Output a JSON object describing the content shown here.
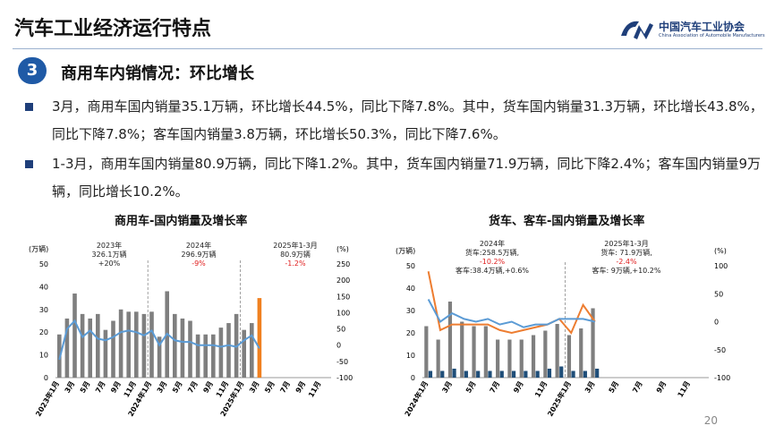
{
  "header": {
    "title": "汽车工业经济运行特点"
  },
  "logo": {
    "cn": "中国汽车工业协会",
    "en": "China Association of Automobile Manufacturers"
  },
  "section": {
    "number": "3",
    "title": "商用车内销情况：环比增长"
  },
  "paragraphs": [
    "3月，商用车国内销量35.1万辆，环比增长44.5%，同比下降7.8%。其中，货车国内销量31.3万辆，环比增长43.8%，同比下降7.8%；客车国内销量3.8万辆，环比增长50.3%，同比下降7.6%。",
    "1-3月，商用车国内销量80.9万辆，同比下降1.2%。其中，货车国内销量71.9万辆，同比下降2.4%；客车国内销量9万辆，同比增长10.2%。"
  ],
  "page_number": "20",
  "colors": {
    "bar_gray": "#7f7f7f",
    "bar_orange": "#f08020",
    "line_blue": "#5b9bd5",
    "line_orange": "#ed7d31",
    "bar_dark_blue": "#1f4e79",
    "red": "#e02020",
    "title_blue": "#1f3f7a"
  },
  "chart_data": [
    {
      "type": "bar",
      "title": "商用车-国内销量及增长率",
      "y_left_unit": "(万辆)",
      "y_right_unit": "(%)",
      "ylim": [
        0,
        50
      ],
      "y2lim": [
        -100,
        250
      ],
      "y_ticks": [
        0,
        10,
        20,
        30,
        40,
        50
      ],
      "y2_ticks": [
        -100,
        -50,
        0,
        50,
        100,
        150,
        200,
        250
      ],
      "x_tick_labels": [
        "2023年1月",
        "3月",
        "5月",
        "7月",
        "9月",
        "11月",
        "2024年1月",
        "3月",
        "5月",
        "7月",
        "9月",
        "11月",
        "2025年1月",
        "3月",
        "5月",
        "7月",
        "9月",
        "11月"
      ],
      "series": [
        {
          "kind": "bar",
          "values": [
            19,
            26,
            37,
            28,
            26,
            28,
            21,
            25,
            30,
            29,
            29,
            28,
            29,
            18,
            38,
            28,
            26,
            25,
            19,
            19,
            19,
            22,
            24,
            28,
            21,
            24,
            35
          ]
        },
        {
          "kind": "line",
          "values": [
            -45,
            50,
            75,
            25,
            45,
            20,
            15,
            25,
            40,
            45,
            40,
            30,
            45,
            0,
            35,
            15,
            10,
            10,
            0,
            0,
            0,
            -5,
            0,
            -5,
            15,
            30,
            -10
          ]
        }
      ],
      "annotations": [
        {
          "lines": [
            "2023年",
            "326.1万辆",
            "+20%"
          ]
        },
        {
          "lines": [
            "2024年",
            "296.9万辆",
            "-9%"
          ]
        },
        {
          "lines": [
            "2025年1-3月",
            "80.9万辆",
            "-1.2%"
          ]
        }
      ]
    },
    {
      "type": "bar",
      "title": "货车、客车-国内销量及增长率",
      "y_left_unit": "(万辆)",
      "y_right_unit": "(%)",
      "ylim": [
        0,
        50
      ],
      "y2lim": [
        -100,
        100
      ],
      "y_ticks": [
        0,
        10,
        20,
        30,
        40,
        50
      ],
      "y2_ticks": [
        -100,
        -50,
        0,
        50,
        100
      ],
      "x_tick_labels": [
        "2024年1月",
        "3月",
        "5月",
        "7月",
        "9月",
        "11月",
        "2025年1月",
        "3月",
        "5月",
        "7月",
        "9月",
        "11月"
      ],
      "series": [
        {
          "kind": "bar",
          "values": [
            23,
            17,
            34,
            25,
            23,
            23,
            17,
            17,
            17,
            19,
            21,
            24,
            19,
            22,
            31
          ]
        },
        {
          "kind": "bar",
          "values": [
            3,
            3,
            4,
            3,
            3,
            3,
            3,
            3,
            3,
            3,
            4,
            5,
            3,
            3,
            4
          ]
        },
        {
          "kind": "line",
          "values": [
            90,
            -15,
            -5,
            -5,
            -5,
            -5,
            -15,
            -20,
            -15,
            -10,
            -5,
            5,
            -20,
            30,
            0
          ]
        },
        {
          "kind": "line",
          "values": [
            40,
            0,
            15,
            5,
            0,
            5,
            -5,
            0,
            -10,
            -5,
            -5,
            5,
            5,
            5,
            0
          ]
        }
      ],
      "annotations": [
        {
          "lines": [
            "2024年",
            "货车:258.5万辆,",
            "-10.2%",
            "客车:38.4万辆,+0.6%"
          ]
        },
        {
          "lines": [
            "2025年1-3月",
            "货车: 71.9万辆,",
            "-2.4%",
            "客车: 9万辆,+10.2%"
          ]
        }
      ]
    }
  ]
}
